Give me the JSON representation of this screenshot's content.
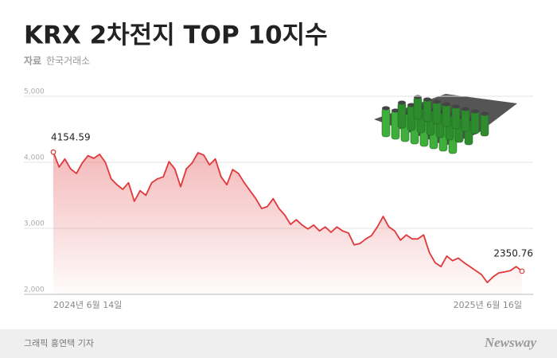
{
  "chart_data": {
    "type": "area-line",
    "title": "KRX 2차전지 TOP 10지수",
    "source_label": "자료",
    "source": "한국거래소",
    "credit": "그래픽 홍연택 기자",
    "logo": "Newsway",
    "categories": [
      "2024년 6월 14일",
      null,
      null,
      null,
      null,
      null,
      null,
      null,
      null,
      null,
      null,
      null,
      null,
      null,
      null,
      null,
      null,
      null,
      null,
      null,
      null,
      null,
      null,
      null,
      null,
      null,
      null,
      null,
      null,
      null,
      null,
      null,
      null,
      null,
      null,
      null,
      null,
      null,
      null,
      null,
      null,
      null,
      null,
      null,
      null,
      null,
      null,
      null,
      null,
      null,
      null,
      null,
      null,
      null,
      null,
      null,
      null,
      null,
      null,
      null,
      null,
      null,
      null,
      null,
      null,
      null,
      null,
      null,
      null,
      null,
      null,
      null,
      null,
      null,
      null,
      null,
      null,
      null,
      null,
      null,
      null,
      "2025년 6월 16일"
    ],
    "values": [
      4154.59,
      3928,
      4050,
      3900,
      3830,
      3990,
      4100,
      4060,
      4120,
      4000,
      3750,
      3660,
      3590,
      3690,
      3410,
      3570,
      3500,
      3690,
      3750,
      3780,
      4010,
      3900,
      3630,
      3900,
      3990,
      4145,
      4110,
      3960,
      4050,
      3780,
      3660,
      3890,
      3830,
      3690,
      3570,
      3450,
      3300,
      3330,
      3450,
      3300,
      3200,
      3060,
      3130,
      3050,
      2990,
      3050,
      2960,
      3020,
      2940,
      3020,
      2960,
      2930,
      2750,
      2770,
      2840,
      2890,
      3020,
      3180,
      3020,
      2960,
      2820,
      2900,
      2840,
      2840,
      2900,
      2630,
      2480,
      2420,
      2580,
      2510,
      2550,
      2480,
      2420,
      2360,
      2300,
      2180,
      2265,
      2325,
      2340,
      2360,
      2420,
      2350.76
    ],
    "color": "#e0383a",
    "ylim": [
      2000,
      5000
    ],
    "yticks": [
      {
        "value": 2000,
        "label": "2,000"
      },
      {
        "value": 3000,
        "label": "3,000"
      },
      {
        "value": 4000,
        "label": "4,000"
      },
      {
        "value": 5000,
        "label": "5,000"
      }
    ],
    "grid": true
  }
}
